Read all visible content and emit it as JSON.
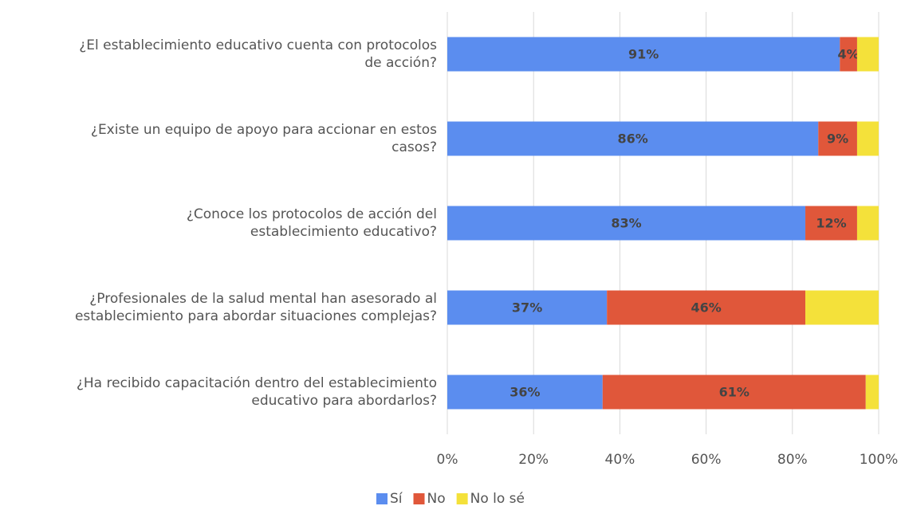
{
  "chart_data": {
    "type": "stacked_barh",
    "categories": [
      [
        "¿El establecimiento educativo cuenta con protocolos",
        "de acción?"
      ],
      [
        "¿Existe un equipo de apoyo para accionar en estos",
        "casos?"
      ],
      [
        "¿Conoce los protocolos de acción del",
        "establecimiento educativo?"
      ],
      [
        "¿Profesionales de la salud mental han asesorado al",
        "establecimiento para abordar situaciones complejas?"
      ],
      [
        "¿Ha recibido capacitación dentro del establecimiento",
        "educativo para abordarlos?"
      ]
    ],
    "series": [
      {
        "name": "Sí",
        "color": "#5B8DEF",
        "values": [
          91,
          86,
          83,
          37,
          36
        ],
        "value_labels": [
          "91%",
          "86%",
          "83%",
          "37%",
          "36%"
        ]
      },
      {
        "name": "No",
        "color": "#E0573A",
        "values": [
          4,
          9,
          12,
          46,
          61
        ],
        "value_labels": [
          "4%",
          "9%",
          "12%",
          "46%",
          "61%"
        ]
      },
      {
        "name": "No lo sé",
        "color": "#F4E13A",
        "values": [
          5,
          5,
          5,
          17,
          3
        ]
      }
    ],
    "xlim": [
      0,
      100
    ],
    "xticks": [
      {
        "value": 0,
        "label": "0%"
      },
      {
        "value": 20,
        "label": "20%"
      },
      {
        "value": 40,
        "label": "40%"
      },
      {
        "value": 60,
        "label": "60%"
      },
      {
        "value": 80,
        "label": "80%"
      },
      {
        "value": 100,
        "label": "100%"
      }
    ],
    "grid": true,
    "legend": "bottom"
  }
}
